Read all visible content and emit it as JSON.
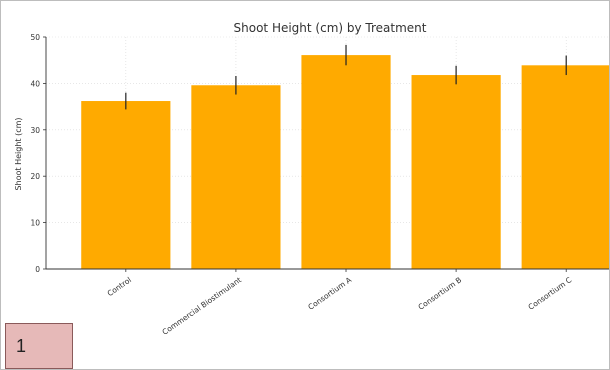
{
  "panel_label": "1",
  "chart_data": {
    "type": "bar",
    "title": "Shoot Height (cm) by Treatment",
    "xlabel": "",
    "ylabel": "Shoot Height (cm)",
    "categories": [
      "Control",
      "Commercial Biostimulant",
      "Consortium A",
      "Consortium B",
      "Consortium C"
    ],
    "values": [
      36.2,
      39.6,
      46.1,
      41.8,
      43.9
    ],
    "errors": [
      1.8,
      2.0,
      2.2,
      2.0,
      2.1
    ],
    "ylim": [
      0,
      50
    ],
    "yticks": [
      0,
      10,
      20,
      30,
      40,
      50
    ],
    "grid": true,
    "bar_color": "#ffaa00",
    "error_color": "#222222"
  }
}
